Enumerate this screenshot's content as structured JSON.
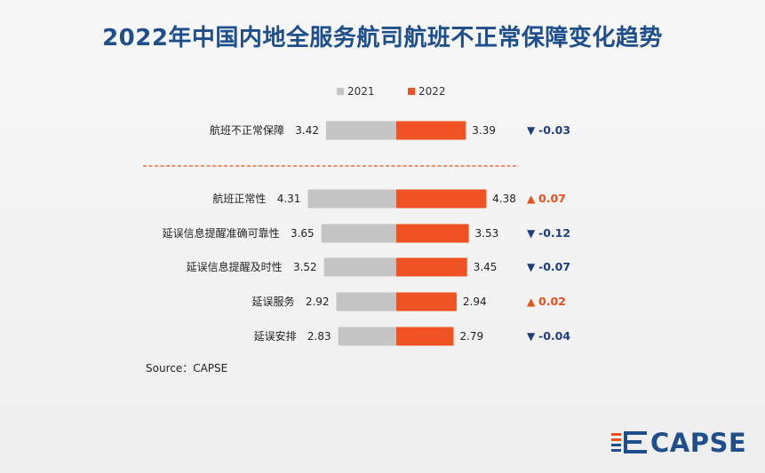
{
  "title": "2022年中国内地全服务航司航班不正常保障变化趋势",
  "source": "Source：CAPSE",
  "logo": {
    "icon": "capse-logo-icon",
    "text": "CAPSE"
  },
  "colors": {
    "bar_2021": "#c4c4c4",
    "bar_2022": "#ef5323",
    "up": "#e8501c",
    "down": "#1f3f7a",
    "title": "#1f4e8c",
    "divider": "#e8501c"
  },
  "chart_data": {
    "type": "bar",
    "orientation": "horizontal-butterfly",
    "title": "2022年中国内地全服务航司航班不正常保障变化趋势",
    "legend": [
      "2021",
      "2022"
    ],
    "legend_position": "top",
    "grid": false,
    "xlim": [
      0,
      5
    ],
    "categories": [
      "航班不正常保障",
      "航班正常性",
      "延误信息提醒准确可靠性",
      "延误信息提醒及时性",
      "延误服务",
      "延误安排"
    ],
    "series": [
      {
        "name": "2021",
        "values": [
          3.42,
          4.31,
          3.65,
          3.52,
          2.92,
          2.83
        ]
      },
      {
        "name": "2022",
        "values": [
          3.39,
          4.38,
          3.53,
          3.45,
          2.94,
          2.79
        ]
      }
    ],
    "changes": [
      {
        "arrow": "▼",
        "label": "-0.03",
        "direction": "down"
      },
      {
        "arrow": "▲",
        "label": "0.07",
        "direction": "up"
      },
      {
        "arrow": "▼",
        "label": "-0.12",
        "direction": "down"
      },
      {
        "arrow": "▼",
        "label": "-0.07",
        "direction": "down"
      },
      {
        "arrow": "▲",
        "label": "0.02",
        "direction": "up"
      },
      {
        "arrow": "▼",
        "label": "-0.04",
        "direction": "down"
      }
    ],
    "annotations": [
      "dashed divider below 航班不正常保障"
    ]
  }
}
